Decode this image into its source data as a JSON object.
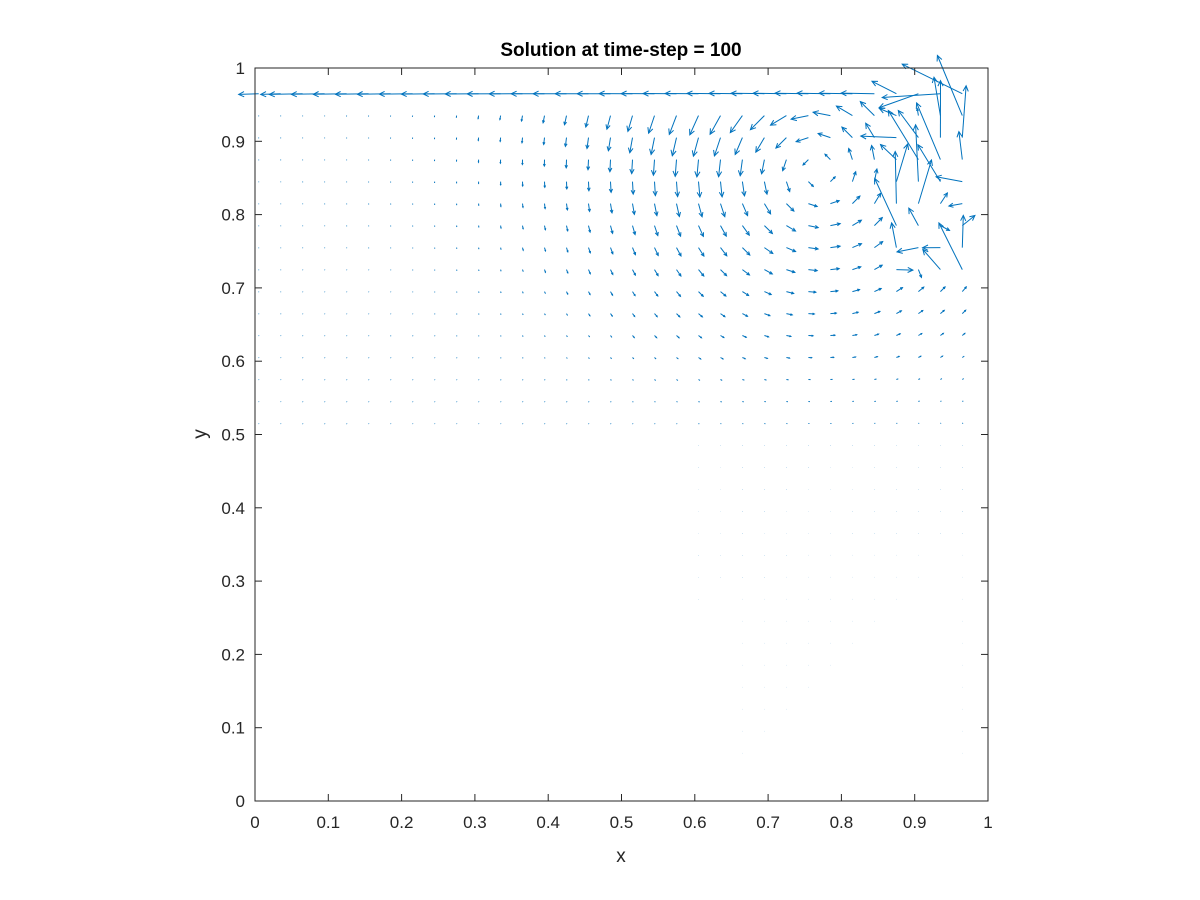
{
  "chart_data": {
    "type": "quiver",
    "title": "Solution at time-step = 100",
    "xlabel": "x",
    "ylabel": "y",
    "xlim": [
      0,
      1
    ],
    "ylim": [
      0,
      1
    ],
    "xticks": [
      "0",
      "0.1",
      "0.2",
      "0.3",
      "0.4",
      "0.5",
      "0.6",
      "0.7",
      "0.8",
      "0.9",
      "1"
    ],
    "yticks": [
      "0",
      "0.1",
      "0.2",
      "0.3",
      "0.4",
      "0.5",
      "0.6",
      "0.7",
      "0.8",
      "0.9",
      "1"
    ],
    "grid": false,
    "box": true,
    "arrow_color": "#0072BD",
    "domain_shape": "L-shaped region; the lower-left square x in [0, 0.6], y in [0, 0.5] contains no vectors",
    "grid_spacing": 0.03,
    "vortex_center": [
      0.77,
      0.86
    ],
    "lid_velocity_u": 1.0,
    "scale_note": "vectors decay in magnitude with distance from the top lid; strong disturbed flow near the top-right corner"
  }
}
